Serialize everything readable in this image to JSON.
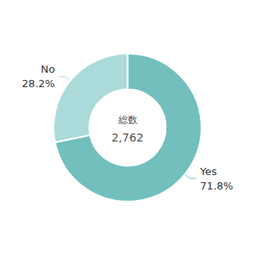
{
  "chart_data": {
    "type": "pie",
    "categories": [
      "Yes",
      "No"
    ],
    "values": [
      71.8,
      28.2
    ],
    "value_labels": [
      "71.8%",
      "28.2%"
    ],
    "colors": [
      "#72bfbd",
      "#aadada"
    ],
    "data_labels": true,
    "annotations": [
      "総数",
      "2,762"
    ]
  }
}
